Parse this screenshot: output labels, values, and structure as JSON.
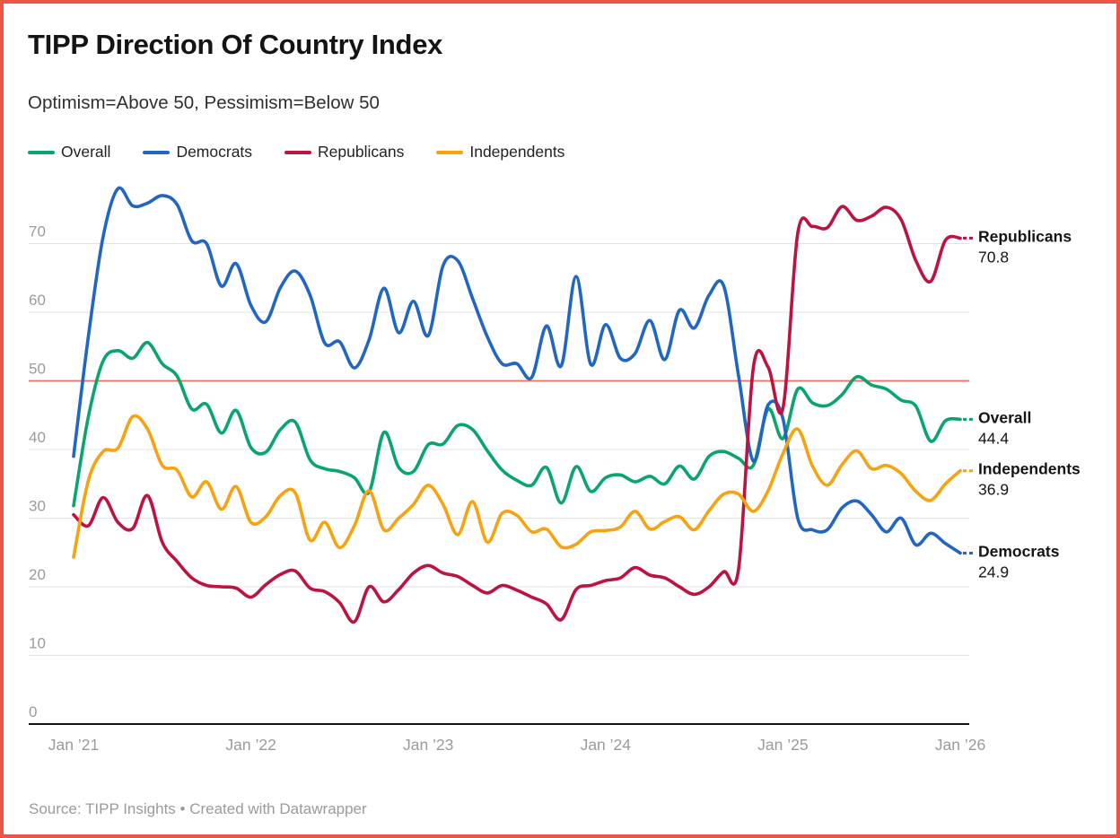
{
  "header": {
    "title": "TIPP Direction Of Country Index",
    "subtitle": "Optimism=Above 50, Pessimism=Below 50"
  },
  "footer": {
    "text": "Source: TIPP Insights • Created with Datawrapper"
  },
  "colors": {
    "frame": "#ea5749",
    "grid": "#e3e3e3",
    "axis": "#141414",
    "tick_text": "#9b9b9b",
    "reference_line": "#e57066",
    "label_text": "#151515"
  },
  "chart_data": {
    "type": "line",
    "title": "TIPP Direction Of Country Index",
    "subtitle": "Optimism=Above 50, Pessimism=Below 50",
    "x_unit": "month",
    "x_start": "2021-01",
    "n_points": 61,
    "x_tick_positions": [
      0,
      12,
      24,
      36,
      48,
      60
    ],
    "x_tick_labels": [
      "Jan ’21",
      "Jan ’22",
      "Jan ’23",
      "Jan ’24",
      "Jan ’25",
      "Jan ’26"
    ],
    "y_ticks": [
      0,
      10,
      20,
      30,
      40,
      50,
      60,
      70
    ],
    "ylim": [
      0,
      78.5
    ],
    "grid": true,
    "legend_position": "top",
    "reference_line": {
      "value": 50
    },
    "series": [
      {
        "name": "Overall",
        "color": "#0aa56c",
        "end_value_label": "44.4",
        "values": [
          31.8,
          44.8,
          52.9,
          54.4,
          53.3,
          55.6,
          52.5,
          50.7,
          45.9,
          46.6,
          42.4,
          45.7,
          40.3,
          39.6,
          42.9,
          44.0,
          38.5,
          37.2,
          36.8,
          35.9,
          33.8,
          42.5,
          37.4,
          36.8,
          40.7,
          40.8,
          43.5,
          42.9,
          39.8,
          37.0,
          35.5,
          34.8,
          37.4,
          32.2,
          37.5,
          33.9,
          35.9,
          36.3,
          35.3,
          36.1,
          35.0,
          37.6,
          35.7,
          39.0,
          39.7,
          38.7,
          37.7,
          45.9,
          41.6,
          48.8,
          46.8,
          46.4,
          48.0,
          50.6,
          49.4,
          48.8,
          47.2,
          46.3,
          41.2,
          44.2,
          44.4
        ]
      },
      {
        "name": "Democrats",
        "color": "#2066c2",
        "end_value_label": "24.9",
        "values": [
          39.0,
          56.5,
          71.0,
          78.0,
          75.5,
          75.9,
          77.0,
          75.7,
          70.4,
          70.0,
          63.8,
          67.1,
          61.0,
          58.6,
          63.6,
          66.0,
          62.5,
          55.5,
          55.7,
          51.9,
          56.0,
          63.5,
          57.0,
          61.6,
          56.6,
          66.8,
          67.5,
          62.0,
          56.4,
          52.5,
          52.5,
          50.5,
          58.0,
          52.2,
          65.2,
          52.4,
          58.2,
          53.3,
          54.0,
          58.8,
          53.1,
          60.3,
          57.7,
          62.5,
          63.8,
          50.7,
          38.3,
          46.5,
          44.5,
          30.0,
          28.3,
          28.3,
          31.5,
          32.5,
          30.5,
          28.0,
          30.0,
          26.1,
          27.8,
          26.3,
          24.9
        ]
      },
      {
        "name": "Republicans",
        "color": "#bc1341",
        "end_value_label": "70.8",
        "values": [
          30.5,
          28.9,
          33.0,
          29.4,
          28.5,
          33.3,
          26.5,
          23.7,
          21.3,
          20.2,
          20.0,
          19.8,
          18.5,
          20.3,
          21.8,
          22.3,
          19.8,
          19.3,
          17.7,
          14.9,
          20.0,
          17.8,
          19.6,
          22.0,
          23.1,
          22.0,
          21.5,
          20.2,
          19.1,
          20.2,
          19.5,
          18.5,
          17.5,
          15.2,
          19.6,
          20.2,
          20.9,
          21.3,
          22.8,
          21.7,
          21.3,
          20.0,
          18.9,
          20.0,
          22.2,
          22.6,
          52.0,
          52.0,
          46.0,
          71.5,
          72.5,
          72.3,
          75.4,
          73.4,
          74.0,
          75.3,
          73.5,
          67.5,
          64.5,
          70.5,
          70.8
        ]
      },
      {
        "name": "Independents",
        "color": "#f7a311",
        "end_value_label": "36.9",
        "values": [
          24.3,
          35.5,
          39.7,
          40.2,
          44.8,
          43.0,
          37.7,
          37.0,
          33.1,
          35.3,
          31.3,
          34.6,
          29.4,
          30.2,
          33.3,
          33.7,
          26.8,
          29.4,
          25.7,
          28.9,
          34.0,
          28.3,
          30.0,
          32.0,
          34.8,
          32.0,
          27.6,
          32.4,
          26.5,
          30.7,
          30.4,
          28.0,
          28.4,
          25.8,
          26.2,
          28.0,
          28.2,
          28.7,
          31.0,
          28.4,
          29.5,
          30.2,
          28.3,
          31.1,
          33.5,
          33.5,
          31.0,
          34.0,
          39.4,
          43.0,
          37.6,
          34.8,
          37.8,
          39.8,
          37.2,
          37.7,
          36.5,
          33.9,
          32.6,
          35.0,
          36.9
        ]
      }
    ]
  },
  "legend": [
    {
      "label": "Overall",
      "color": "#0aa56c"
    },
    {
      "label": "Democrats",
      "color": "#2066c2"
    },
    {
      "label": "Republicans",
      "color": "#bc1341"
    },
    {
      "label": "Independents",
      "color": "#f7a311"
    }
  ]
}
